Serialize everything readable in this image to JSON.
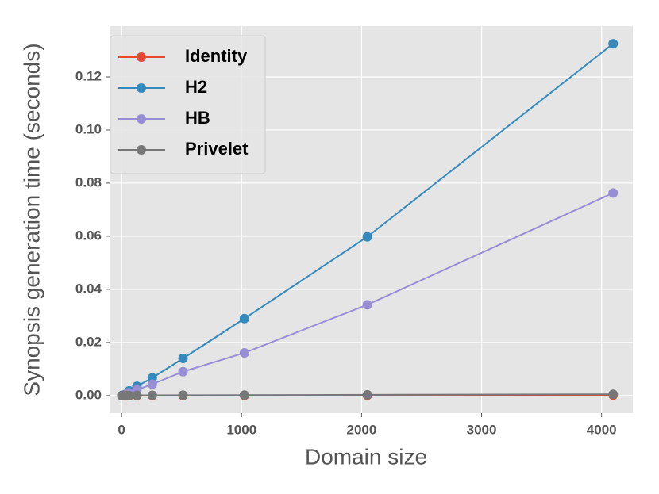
{
  "chart_data": {
    "type": "line",
    "xlabel": "Domain size",
    "ylabel": "Synopsis generation time (seconds)",
    "x": [
      2,
      4,
      8,
      16,
      32,
      64,
      128,
      256,
      512,
      1024,
      2048,
      4096
    ],
    "series": [
      {
        "name": "Identity",
        "color": "#e24a33",
        "values": [
          1e-05,
          1e-05,
          1e-05,
          1e-05,
          2e-05,
          2e-05,
          3e-05,
          4e-05,
          5e-05,
          7e-05,
          0.0001,
          0.0002
        ]
      },
      {
        "name": "H2",
        "color": "#348abd",
        "values": [
          2e-05,
          5e-05,
          0.0001,
          0.0002,
          0.0005,
          0.0018,
          0.0035,
          0.0067,
          0.014,
          0.029,
          0.0598,
          0.1325
        ]
      },
      {
        "name": "HB",
        "color": "#988ed5",
        "values": [
          2e-05,
          4e-05,
          8e-05,
          0.00015,
          0.0003,
          0.0011,
          0.0022,
          0.0043,
          0.009,
          0.0161,
          0.0342,
          0.0763
        ]
      },
      {
        "name": "Privelet",
        "color": "#777777",
        "values": [
          1e-05,
          1e-05,
          2e-05,
          3e-05,
          4e-05,
          6e-05,
          0.0001,
          0.00012,
          0.00015,
          0.0002,
          0.0003,
          0.0005
        ]
      }
    ],
    "xlim": [
      -100,
      4260
    ],
    "ylim": [
      -0.0066,
      0.1391
    ],
    "xticks": [
      0,
      1000,
      2000,
      3000,
      4000
    ],
    "yticks": [
      {
        "value": 0,
        "label": "0.00"
      },
      {
        "value": 0.02,
        "label": "0.02"
      },
      {
        "value": 0.04,
        "label": "0.04"
      },
      {
        "value": 0.06,
        "label": "0.06"
      },
      {
        "value": 0.08,
        "label": "0.08"
      },
      {
        "value": 0.1,
        "label": "0.10"
      },
      {
        "value": 0.12,
        "label": "0.12"
      }
    ],
    "grid": true,
    "legend": "upper left"
  }
}
